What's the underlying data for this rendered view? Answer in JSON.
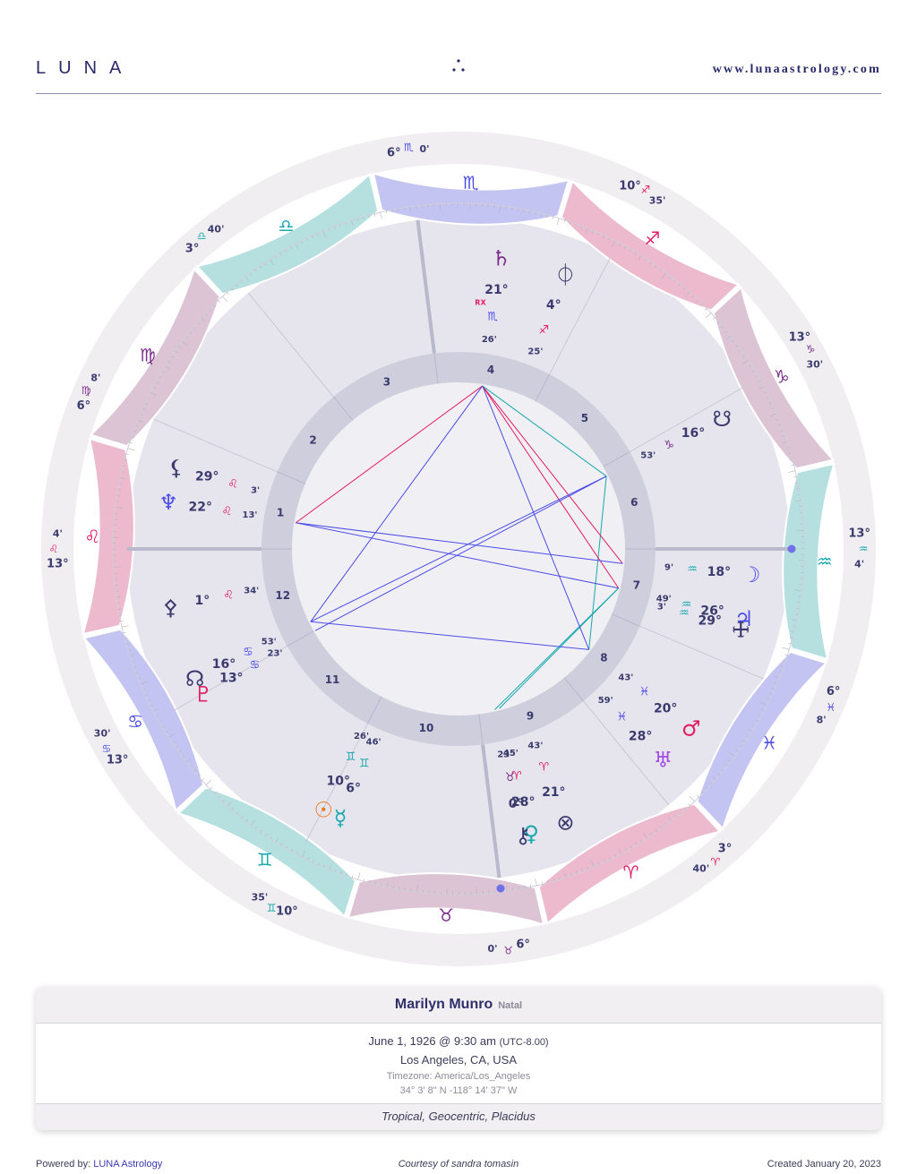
{
  "header": {
    "logo": "LUNA",
    "website": "www.lunaastrology.com"
  },
  "colors": {
    "pink": "#e21e63",
    "teal": "#18a9ae",
    "blue": "#4c4ce6",
    "purple": "#7a2e8a",
    "navy": "#3a3a6e",
    "orange": "#f07818"
  },
  "chart": {
    "ascendant_degree": 133.07,
    "house_numbers": [
      "1",
      "2",
      "3",
      "4",
      "5",
      "6",
      "7",
      "8",
      "9",
      "10",
      "11",
      "12"
    ],
    "zodiac_band": [
      {
        "glyph": "♈",
        "fill": "#ecb9cd",
        "color": "#e21e63"
      },
      {
        "glyph": "♉",
        "fill": "#dcc4d4",
        "color": "#7a2e8a"
      },
      {
        "glyph": "♊",
        "fill": "#b6e0e0",
        "color": "#18a9ae"
      },
      {
        "glyph": "♋",
        "fill": "#c4c4f2",
        "color": "#4c4ce6"
      },
      {
        "glyph": "♌",
        "fill": "#ecb9cd",
        "color": "#e21e63"
      },
      {
        "glyph": "♍",
        "fill": "#dcc4d4",
        "color": "#7a2e8a"
      },
      {
        "glyph": "♎",
        "fill": "#b6e0e0",
        "color": "#18a9ae"
      },
      {
        "glyph": "♏",
        "fill": "#c4c4f2",
        "color": "#4c4ce6"
      },
      {
        "glyph": "♐",
        "fill": "#ecb9cd",
        "color": "#e21e63"
      },
      {
        "glyph": "♑",
        "fill": "#dcc4d4",
        "color": "#7a2e8a"
      },
      {
        "glyph": "♒",
        "fill": "#b6e0e0",
        "color": "#18a9ae"
      },
      {
        "glyph": "♓",
        "fill": "#c4c4f2",
        "color": "#4c4ce6"
      }
    ],
    "house_cusps": [
      {
        "num": "1",
        "lon": 133.07,
        "deg": "13°",
        "glyph": "♌",
        "min": "4'"
      },
      {
        "num": "2",
        "lon": 156.13,
        "deg": "6°",
        "glyph": "♍",
        "min": "8'"
      },
      {
        "num": "3",
        "lon": 183.67,
        "deg": "3°",
        "glyph": "♎",
        "min": "40'"
      },
      {
        "num": "4",
        "lon": 216.0,
        "deg": "6°",
        "glyph": "♏",
        "min": "0'"
      },
      {
        "num": "5",
        "lon": 250.58,
        "deg": "10°",
        "glyph": "♐",
        "min": "35'"
      },
      {
        "num": "6",
        "lon": 283.5,
        "deg": "13°",
        "glyph": "♑",
        "min": "30'"
      },
      {
        "num": "7",
        "lon": 313.07,
        "deg": "13°",
        "glyph": "♒",
        "min": "4'"
      },
      {
        "num": "8",
        "lon": 336.13,
        "deg": "6°",
        "glyph": "♓",
        "min": "8'"
      },
      {
        "num": "9",
        "lon": 3.67,
        "deg": "3°",
        "glyph": "♈",
        "min": "40'"
      },
      {
        "num": "10",
        "lon": 36.0,
        "deg": "6°",
        "glyph": "♉",
        "min": "0'"
      },
      {
        "num": "11",
        "lon": 70.58,
        "deg": "10°",
        "glyph": "♊",
        "min": "35'"
      },
      {
        "num": "12",
        "lon": 103.5,
        "deg": "13°",
        "glyph": "♋",
        "min": "30'"
      }
    ],
    "planets": [
      {
        "name": "Sun",
        "glyph": "☉",
        "lon": 70.43,
        "deg": "10°",
        "sign": "♊",
        "signColor": "#18a9ae",
        "min": "26'",
        "color": "#f07818"
      },
      {
        "name": "Mercury",
        "glyph": "☿",
        "lon": 66.77,
        "deg": "6°",
        "sign": "♊",
        "signColor": "#18a9ae",
        "min": "46'",
        "color": "#18a9ae"
      },
      {
        "name": "Venus",
        "glyph": "♀",
        "lon": 28.75,
        "deg": "28°",
        "sign": "♈",
        "signColor": "#e21e63",
        "min": "45'",
        "color": "#18a9ae"
      },
      {
        "name": "Chiron",
        "glyph": "⚷",
        "lon": 30.38,
        "deg": "0°",
        "sign": "♉",
        "signColor": "#7a2e8a",
        "min": "23'",
        "color": "#3a3a6e"
      },
      {
        "name": "Part of Fortune",
        "glyph": "⊗",
        "lon": 21.72,
        "deg": "21°",
        "sign": "♈",
        "signColor": "#e21e63",
        "min": "43'",
        "color": "#3a3a6e"
      },
      {
        "name": "Uranus",
        "glyph": "♅",
        "lon": 358.98,
        "deg": "28°",
        "sign": "♓",
        "signColor": "#4c4ce6",
        "min": "59'",
        "color": "#a24ce6"
      },
      {
        "name": "Mars",
        "glyph": "♂",
        "lon": 350.72,
        "deg": "20°",
        "sign": "♓",
        "signColor": "#4c4ce6",
        "min": "43'",
        "color": "#e21e63"
      },
      {
        "name": "Vertex",
        "glyph": "🜊",
        "lon": 329.05,
        "deg": "29°",
        "sign": "♒",
        "signColor": "#18a9ae",
        "min": "3'",
        "color": "#3a3a6e"
      },
      {
        "name": "Jupiter",
        "glyph": "♃",
        "lon": 326.82,
        "deg": "26°",
        "sign": "♒",
        "signColor": "#18a9ae",
        "min": "49'",
        "color": "#4c4ce6"
      },
      {
        "name": "Moon",
        "glyph": "☽",
        "lon": 318.15,
        "deg": "18°",
        "sign": "♒",
        "signColor": "#18a9ae",
        "min": "9'",
        "color": "#4c4ce6"
      },
      {
        "name": "South Node",
        "glyph": "☋",
        "lon": 286.88,
        "deg": "16°",
        "sign": "♑",
        "signColor": "#7a2e8a",
        "min": "53'",
        "color": "#3a3a6e"
      },
      {
        "name": "Fortuna",
        "glyph": "⏀",
        "lon": 244.42,
        "deg": "4°",
        "sign": "♐",
        "signColor": "#e21e63",
        "min": "25'",
        "color": "#3a3a6e"
      },
      {
        "name": "Saturn",
        "glyph": "♄",
        "lon": 231.43,
        "deg": "21°",
        "sign": "♏",
        "signColor": "#4c4ce6",
        "min": "26'",
        "color": "#7a2e8a",
        "rx": "RX"
      },
      {
        "name": "Lilith",
        "glyph": "⚸",
        "lon": 149.05,
        "deg": "29°",
        "sign": "♌",
        "signColor": "#e21e63",
        "min": "3'",
        "color": "#3a3a6e"
      },
      {
        "name": "Neptune",
        "glyph": "♆",
        "lon": 142.22,
        "deg": "22°",
        "sign": "♌",
        "signColor": "#e21e63",
        "min": "13'",
        "color": "#4c4ce6"
      },
      {
        "name": "Selena",
        "glyph": "⚴",
        "lon": 121.57,
        "deg": "1°",
        "sign": "♌",
        "signColor": "#e21e63",
        "min": "34'",
        "color": "#3a3a6e"
      },
      {
        "name": "North Node",
        "glyph": "☊",
        "lon": 106.88,
        "deg": "16°",
        "sign": "♋",
        "signColor": "#4c4ce6",
        "min": "53'",
        "color": "#3a3a6e"
      },
      {
        "name": "Pluto",
        "glyph": "♇",
        "lon": 103.38,
        "deg": "13°",
        "sign": "♋",
        "signColor": "#4c4ce6",
        "min": "23'",
        "color": "#e21e63"
      }
    ]
  },
  "chart_data": {
    "type": "table",
    "title": "",
    "rows": [
      [
        "Sun",
        "10°",
        "♊",
        "26'"
      ],
      [
        "Mercury",
        "6°",
        "♊",
        "46'"
      ],
      [
        "Venus",
        "28°",
        "♈",
        "45'"
      ],
      [
        "Chiron",
        "0°",
        "♉",
        "23'"
      ],
      [
        "Part of Fortune",
        "21°",
        "♈",
        "43'"
      ],
      [
        "Uranus",
        "28°",
        "♓",
        "59'"
      ],
      [
        "Mars",
        "20°",
        "♓",
        "43'"
      ],
      [
        "Vertex",
        "29°",
        "♒",
        "3'"
      ],
      [
        "Jupiter",
        "26°",
        "♒",
        "49'"
      ],
      [
        "Moon",
        "18°",
        "♒",
        "9'"
      ],
      [
        "South Node",
        "16°",
        "♑",
        "53'"
      ],
      [
        "Fortuna",
        "4°",
        "♐",
        "25'"
      ],
      [
        "Saturn",
        "21°",
        "♏",
        "26'"
      ],
      [
        "Lilith",
        "29°",
        "♌",
        "3'"
      ],
      [
        "Neptune",
        "22°",
        "♌",
        "13'"
      ],
      [
        "Selena",
        "1°",
        "♌",
        "34'"
      ],
      [
        "North Node",
        "16°",
        "♋",
        "53'"
      ],
      [
        "Pluto",
        "13°",
        "♋",
        "23'"
      ]
    ]
  },
  "person": {
    "name": "Marilyn Munro",
    "chart_type": "Natal",
    "datetime": "June 1, 1926 @ 9:30 am",
    "utc": "(UTC-8.00)",
    "place": "Los Angeles, CA, USA",
    "timezone": "Timezone: America/Los_Angeles",
    "coords": "34° 3' 8\" N -118° 14' 37\" W",
    "system": "Tropical, Geocentric, Placidus"
  },
  "footer": {
    "powered_prefix": "Powered by: ",
    "powered_link": "LUNA Astrology",
    "courtesy": "Courtesy of sandra tomasin",
    "created": "Created January 20, 2023"
  }
}
